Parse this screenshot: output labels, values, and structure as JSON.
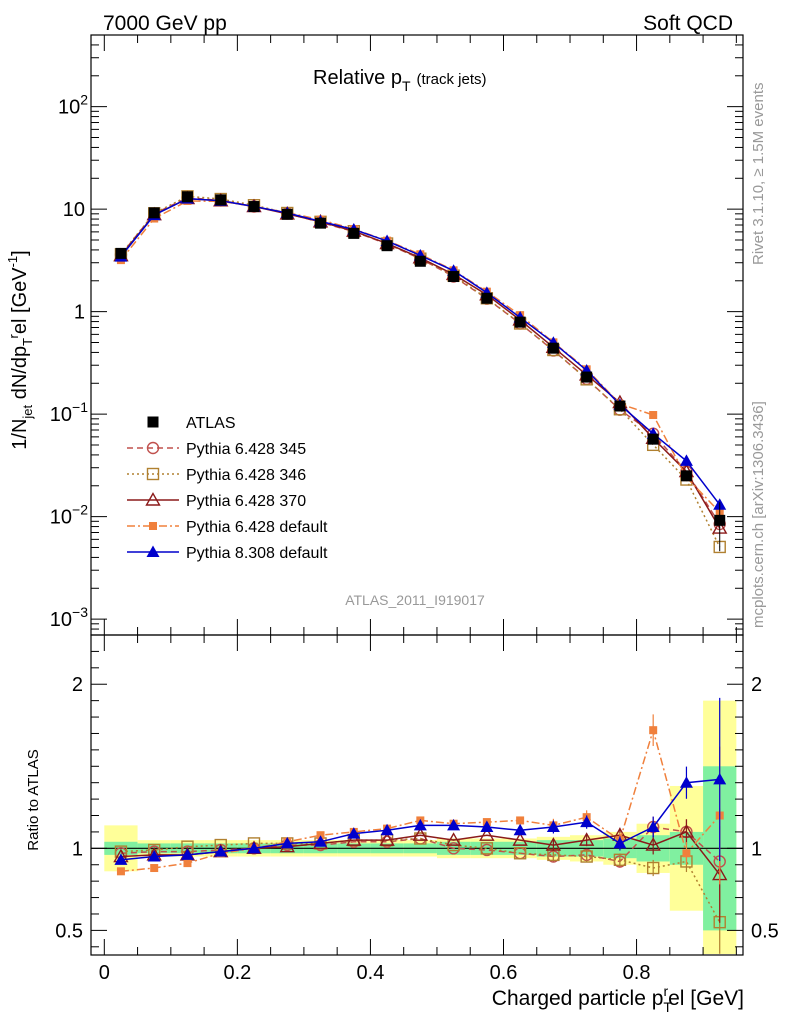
{
  "header": {
    "left": "7000 GeV pp",
    "right": "Soft QCD"
  },
  "side_labels": {
    "rivet": "Rivet 3.1.10, ≥ 1.5M events",
    "mcplots": "mcplots.cern.ch [arXiv:1306.3436]"
  },
  "chart_data": {
    "type": "line",
    "title": "Relative p_T (track jets)",
    "title_main": "Relative p",
    "title_sub": "T",
    "title_extra": "(track jets)",
    "analysis_id": "ATLAS_2011_I919017",
    "xlabel": "Charged particle p_T^rel [GeV]",
    "xlabel_main": "Charged particle p",
    "xlabel_sub": "T",
    "xlabel_sup": "r",
    "xlabel_tail": "el [GeV]",
    "ylabel": "1/N_jet dN/dp_T^rel [GeV^-1]",
    "ylabel_parts": {
      "a": "1/N",
      "jet": "jet",
      "b": " dN/dp",
      "T": "T",
      "r": "r",
      "c": "el [GeV",
      "exp": "-1",
      "d": "]"
    },
    "ratio_ylabel": "Ratio to ATLAS",
    "xlim": [
      -0.02,
      0.96
    ],
    "ylim": [
      0.0007,
      500
    ],
    "yscale": "log",
    "ratio_ylim": [
      0.35,
      2.3
    ],
    "x_ticks": [
      {
        "v": 0,
        "label": "0"
      },
      {
        "v": 0.2,
        "label": "0.2"
      },
      {
        "v": 0.4,
        "label": "0.4"
      },
      {
        "v": 0.6,
        "label": "0.6"
      },
      {
        "v": 0.8,
        "label": "0.8"
      }
    ],
    "y_ticks": [
      {
        "v": 100,
        "base": "10",
        "exp": "2"
      },
      {
        "v": 10,
        "base": "10",
        "exp": ""
      },
      {
        "v": 1,
        "base": "1",
        "exp": ""
      },
      {
        "v": 0.1,
        "base": "10",
        "exp": "−1"
      },
      {
        "v": 0.01,
        "base": "10",
        "exp": "−2"
      },
      {
        "v": 0.001,
        "base": "10",
        "exp": "−3"
      }
    ],
    "ratio_ticks": [
      {
        "v": 2,
        "label": "2"
      },
      {
        "v": 1,
        "label": "1"
      },
      {
        "v": 0.5,
        "label": "0.5"
      }
    ],
    "x": [
      0.025,
      0.075,
      0.125,
      0.175,
      0.225,
      0.275,
      0.325,
      0.375,
      0.425,
      0.475,
      0.525,
      0.575,
      0.625,
      0.675,
      0.725,
      0.775,
      0.825,
      0.875,
      0.925
    ],
    "bin_edges": [
      0.0,
      0.05,
      0.1,
      0.15,
      0.2,
      0.25,
      0.3,
      0.35,
      0.4,
      0.45,
      0.5,
      0.55,
      0.6,
      0.65,
      0.7,
      0.75,
      0.8,
      0.85,
      0.9,
      0.95
    ],
    "data_series": {
      "name": "ATLAS",
      "values": [
        3.7,
        9.2,
        13.2,
        12.3,
        10.6,
        8.9,
        7.3,
        5.8,
        4.4,
        3.1,
        2.2,
        1.35,
        0.79,
        0.44,
        0.23,
        0.12,
        0.057,
        0.025,
        0.0092
      ],
      "band_inner": [
        0.04,
        0.03,
        0.03,
        0.03,
        0.03,
        0.03,
        0.03,
        0.03,
        0.03,
        0.03,
        0.04,
        0.04,
        0.04,
        0.05,
        0.05,
        0.06,
        0.08,
        0.1,
        0.5
      ],
      "band_outer": [
        0.14,
        0.05,
        0.05,
        0.05,
        0.05,
        0.05,
        0.05,
        0.05,
        0.05,
        0.05,
        0.06,
        0.06,
        0.06,
        0.07,
        0.08,
        0.1,
        0.15,
        0.38,
        0.9
      ]
    },
    "series": [
      {
        "name": "Pythia 6.428 345",
        "color": "#c0504d",
        "marker": "circle-open",
        "dash": "6,4",
        "ratio": [
          0.97,
          0.98,
          0.98,
          0.99,
          1.0,
          1.02,
          1.02,
          1.04,
          1.04,
          1.06,
          1.0,
          0.99,
          0.97,
          0.95,
          0.96,
          0.92,
          1.13,
          1.1,
          0.92
        ]
      },
      {
        "name": "Pythia 6.428 346",
        "color": "#b08030",
        "marker": "square-open",
        "dash": "2,3",
        "ratio": [
          0.98,
          0.99,
          1.01,
          1.02,
          1.03,
          1.03,
          1.03,
          1.05,
          1.05,
          1.06,
          1.02,
          1.0,
          0.97,
          0.96,
          0.95,
          0.93,
          0.88,
          0.92,
          0.55
        ]
      },
      {
        "name": "Pythia 6.428 370",
        "color": "#8b1a1a",
        "marker": "triangle-open",
        "dash": "",
        "ratio": [
          0.95,
          0.96,
          0.96,
          0.98,
          1.0,
          1.01,
          1.03,
          1.05,
          1.05,
          1.08,
          1.05,
          1.08,
          1.05,
          1.02,
          1.05,
          1.08,
          1.02,
          1.1,
          0.84
        ]
      },
      {
        "name": "Pythia 6.428 default",
        "color": "#f0803c",
        "marker": "square-filled",
        "dash": "8,3,2,3",
        "ratio": [
          0.86,
          0.88,
          0.91,
          0.97,
          1.0,
          1.04,
          1.08,
          1.1,
          1.12,
          1.17,
          1.15,
          1.16,
          1.17,
          1.14,
          1.19,
          1.05,
          1.72,
          0.97,
          1.2
        ]
      },
      {
        "name": "Pythia 8.308 default",
        "color": "#0000cc",
        "marker": "triangle-filled",
        "dash": "",
        "ratio": [
          0.93,
          0.95,
          0.96,
          0.98,
          1.0,
          1.03,
          1.04,
          1.09,
          1.11,
          1.14,
          1.14,
          1.13,
          1.11,
          1.13,
          1.16,
          1.03,
          1.13,
          1.4,
          1.42
        ]
      }
    ]
  }
}
